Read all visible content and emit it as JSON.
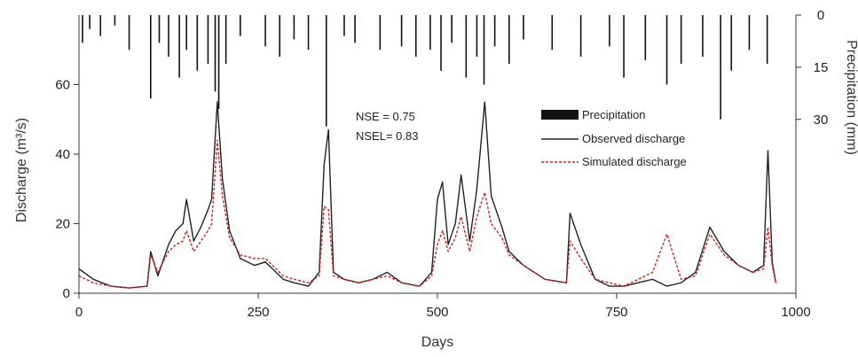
{
  "chart_data": {
    "type": "line",
    "xlabel": "Days",
    "ylabel": "Discharge (m³/s)",
    "y2label": "Precipitation (mm)",
    "xlim": [
      0,
      1000
    ],
    "ylim": [
      0,
      80
    ],
    "y2lim": [
      0,
      80
    ],
    "y2_inverted": true,
    "xticks": [
      "0",
      "250",
      "500",
      "750",
      "1000"
    ],
    "yticks": [
      "0",
      "20",
      "40",
      "60"
    ],
    "y2ticks": [
      "0",
      "15",
      "30"
    ],
    "grid": false,
    "legend_position": "upper-right-inside",
    "annotations": [
      "NSE = 0.75",
      "NSEL= 0.83"
    ],
    "legend": {
      "precipitation": "Precipitation",
      "observed": "Observed discharge",
      "simulated": "Simulated discharge"
    },
    "colors": {
      "precipitation": "#111111",
      "observed": "#222222",
      "simulated": "#d42020"
    },
    "series": [
      {
        "name": "Observed discharge",
        "style": "solid",
        "x": [
          0,
          20,
          45,
          70,
          95,
          100,
          110,
          125,
          135,
          145,
          150,
          160,
          170,
          180,
          185,
          193,
          200,
          210,
          225,
          245,
          260,
          285,
          300,
          320,
          335,
          342,
          348,
          355,
          370,
          390,
          410,
          430,
          450,
          475,
          492,
          500,
          507,
          515,
          525,
          533,
          545,
          555,
          566,
          575,
          590,
          600,
          620,
          650,
          680,
          685,
          700,
          720,
          740,
          760,
          780,
          800,
          820,
          840,
          860,
          880,
          900,
          920,
          940,
          955,
          961,
          967,
          972
        ],
        "y": [
          7,
          4,
          2,
          1.5,
          2,
          12,
          5,
          14,
          18,
          20,
          27,
          15,
          19,
          24,
          27,
          55,
          33,
          18,
          10,
          8,
          9,
          4,
          3,
          2,
          6,
          37,
          47,
          6,
          4,
          3,
          4,
          6,
          3,
          2,
          6,
          27,
          32,
          14,
          20,
          34,
          15,
          30,
          55,
          28,
          19,
          12,
          8,
          4,
          3,
          23,
          14,
          4,
          2,
          2,
          3,
          4,
          2,
          3,
          6,
          19,
          12,
          8,
          6,
          8,
          41,
          9,
          3
        ]
      },
      {
        "name": "Simulated discharge",
        "style": "dashed",
        "x": [
          0,
          20,
          45,
          70,
          95,
          100,
          110,
          125,
          135,
          145,
          150,
          160,
          170,
          180,
          185,
          193,
          200,
          210,
          225,
          245,
          260,
          285,
          300,
          320,
          335,
          342,
          348,
          355,
          370,
          390,
          410,
          430,
          450,
          475,
          492,
          500,
          507,
          515,
          525,
          533,
          545,
          555,
          566,
          575,
          590,
          600,
          620,
          650,
          680,
          685,
          700,
          720,
          740,
          760,
          780,
          800,
          820,
          840,
          860,
          880,
          900,
          920,
          940,
          955,
          961,
          967,
          972
        ],
        "y": [
          5,
          3,
          2,
          1.5,
          2,
          11,
          6,
          12,
          14,
          15,
          18,
          12,
          15,
          18,
          20,
          44,
          28,
          16,
          11,
          10,
          10,
          5,
          4,
          3,
          5,
          25,
          24,
          5,
          4,
          3,
          4,
          5,
          3,
          2,
          5,
          14,
          18,
          12,
          16,
          22,
          12,
          22,
          29,
          20,
          16,
          11,
          8,
          4,
          3,
          15,
          10,
          4,
          3,
          2,
          4,
          6,
          17,
          4,
          5,
          17,
          11,
          8,
          6,
          7,
          19,
          8,
          3
        ]
      },
      {
        "name": "Precipitation",
        "style": "bar-inverted",
        "x": [
          5,
          15,
          30,
          50,
          70,
          100,
          112,
          125,
          140,
          150,
          165,
          180,
          190,
          195,
          205,
          225,
          260,
          280,
          300,
          320,
          345,
          370,
          385,
          420,
          450,
          470,
          490,
          505,
          520,
          540,
          555,
          565,
          580,
          600,
          620,
          660,
          700,
          740,
          760,
          790,
          820,
          840,
          870,
          895,
          910,
          935,
          960
        ],
        "y": [
          8,
          4,
          6,
          3,
          10,
          24,
          8,
          12,
          18,
          10,
          16,
          14,
          22,
          27,
          14,
          6,
          9,
          12,
          7,
          10,
          32,
          6,
          8,
          10,
          9,
          12,
          10,
          16,
          8,
          18,
          12,
          20,
          9,
          14,
          7,
          10,
          12,
          9,
          18,
          13,
          20,
          14,
          12,
          30,
          16,
          10,
          14
        ]
      }
    ]
  }
}
